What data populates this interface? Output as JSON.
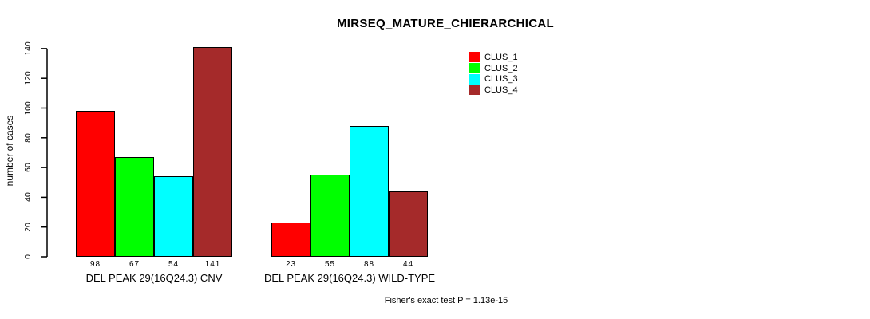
{
  "chart_data": {
    "type": "bar",
    "title": "MIRSEQ_MATURE_CHIERARCHICAL",
    "ylabel": "number of cases",
    "xlabel": "",
    "annotation": "Fisher's exact test P = 1.13e-15",
    "legend_position": "top-right",
    "grid": false,
    "ylim": [
      0,
      146
    ],
    "yticks": [
      0,
      20,
      40,
      60,
      80,
      100,
      120,
      140
    ],
    "series_names": [
      "CLUS_1",
      "CLUS_2",
      "CLUS_3",
      "CLUS_4"
    ],
    "colors": [
      "#ff0000",
      "#00ff00",
      "#00ffff",
      "#a52a2a"
    ],
    "bar_border_color": "#000000",
    "bar_value_labels_shown": true,
    "groups": [
      {
        "label": "DEL PEAK 29(16Q24.3) CNV",
        "values": [
          98,
          67,
          54,
          141
        ]
      },
      {
        "label": "DEL PEAK 29(16Q24.3) WILD-TYPE",
        "values": [
          23,
          55,
          88,
          44
        ]
      }
    ]
  }
}
